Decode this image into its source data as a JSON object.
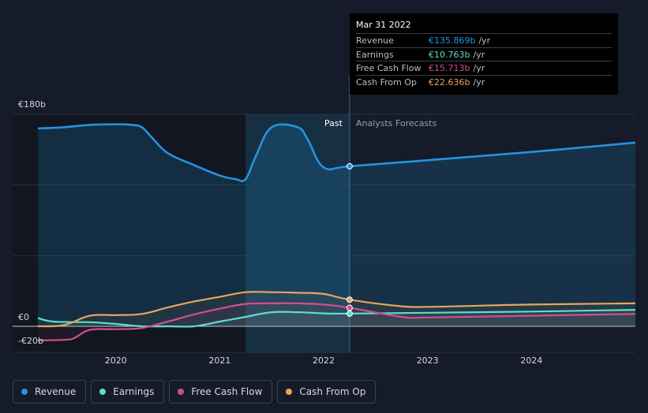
{
  "chart_data": {
    "type": "line",
    "title": "",
    "xlabel": "",
    "ylabel": "",
    "currency": "€",
    "y_tick_labels": [
      "€180b",
      "€0",
      "-€20b"
    ],
    "y_ticks": [
      180,
      0,
      -20
    ],
    "ylim": [
      -20,
      180
    ],
    "x_tick_labels": [
      "2020",
      "2021",
      "2022",
      "2023",
      "2024"
    ],
    "x_ticks": [
      2020,
      2021,
      2022,
      2023,
      2024
    ],
    "xlim": [
      2019.25,
      2025.0
    ],
    "past_label": "Past",
    "forecast_label": "Analysts Forecasts",
    "shaded_region": [
      2021.25,
      2022.25
    ],
    "divider_x": 2022.25,
    "grid": true,
    "legend_position": "bottom-left",
    "series": [
      {
        "name": "Revenue",
        "color": "#2394df",
        "fill": true,
        "points": [
          [
            2019.25,
            168
          ],
          [
            2019.5,
            169
          ],
          [
            2019.75,
            171
          ],
          [
            2020.0,
            171.5
          ],
          [
            2020.15,
            171
          ],
          [
            2020.25,
            169
          ],
          [
            2020.35,
            160
          ],
          [
            2020.5,
            147
          ],
          [
            2020.75,
            137
          ],
          [
            2021.0,
            128
          ],
          [
            2021.15,
            125
          ],
          [
            2021.25,
            125
          ],
          [
            2021.35,
            145
          ],
          [
            2021.5,
            169
          ],
          [
            2021.75,
            169
          ],
          [
            2021.85,
            158
          ],
          [
            2022.0,
            135
          ],
          [
            2022.25,
            135.9
          ],
          [
            2023.0,
            141
          ],
          [
            2024.0,
            148
          ],
          [
            2025.0,
            156
          ]
        ]
      },
      {
        "name": "Earnings",
        "color": "#5ddfc7",
        "fill": false,
        "points": [
          [
            2019.25,
            7
          ],
          [
            2019.4,
            4
          ],
          [
            2019.75,
            3.5
          ],
          [
            2020.0,
            2
          ],
          [
            2020.25,
            0
          ],
          [
            2020.5,
            0
          ],
          [
            2020.75,
            0
          ],
          [
            2021.0,
            4
          ],
          [
            2021.25,
            8
          ],
          [
            2021.5,
            12
          ],
          [
            2021.75,
            12
          ],
          [
            2022.0,
            11
          ],
          [
            2022.25,
            10.8
          ],
          [
            2023.0,
            11.5
          ],
          [
            2024.0,
            12.5
          ],
          [
            2025.0,
            14
          ]
        ]
      },
      {
        "name": "Free Cash Flow",
        "color": "#d24e8f",
        "fill": false,
        "points": [
          [
            2019.25,
            -12
          ],
          [
            2019.5,
            -11.5
          ],
          [
            2019.6,
            -10
          ],
          [
            2019.75,
            -3
          ],
          [
            2020.0,
            -2.5
          ],
          [
            2020.25,
            -1.5
          ],
          [
            2020.5,
            4
          ],
          [
            2020.75,
            10
          ],
          [
            2021.0,
            15
          ],
          [
            2021.25,
            19
          ],
          [
            2021.5,
            19.5
          ],
          [
            2021.75,
            19.5
          ],
          [
            2022.0,
            18.5
          ],
          [
            2022.25,
            15.7
          ],
          [
            2022.75,
            8
          ],
          [
            2023.0,
            7.5
          ],
          [
            2024.0,
            9
          ],
          [
            2025.0,
            10.5
          ]
        ]
      },
      {
        "name": "Cash From Op",
        "color": "#e8a55c",
        "fill": false,
        "points": [
          [
            2019.25,
            0
          ],
          [
            2019.5,
            1
          ],
          [
            2019.75,
            9
          ],
          [
            2020.0,
            9.5
          ],
          [
            2020.25,
            10.5
          ],
          [
            2020.5,
            16
          ],
          [
            2020.75,
            21
          ],
          [
            2021.0,
            25
          ],
          [
            2021.25,
            29
          ],
          [
            2021.5,
            29
          ],
          [
            2021.75,
            28.5
          ],
          [
            2022.0,
            27.5
          ],
          [
            2022.25,
            22.6
          ],
          [
            2022.75,
            17
          ],
          [
            2023.0,
            16.5
          ],
          [
            2023.5,
            17.5
          ],
          [
            2024.0,
            18.5
          ],
          [
            2025.0,
            19.5
          ]
        ]
      }
    ]
  },
  "tooltip": {
    "date": "Mar 31 2022",
    "rows": [
      {
        "label": "Revenue",
        "value": "€135.869b",
        "unit": "/yr",
        "color": "#2394df"
      },
      {
        "label": "Earnings",
        "value": "€10.763b",
        "unit": "/yr",
        "color": "#5ddfc7"
      },
      {
        "label": "Free Cash Flow",
        "value": "€15.713b",
        "unit": "/yr",
        "color": "#d24e8f"
      },
      {
        "label": "Cash From Op",
        "value": "€22.636b",
        "unit": "/yr",
        "color": "#e8a55c"
      }
    ]
  },
  "legend": [
    {
      "label": "Revenue",
      "color": "#2394df"
    },
    {
      "label": "Earnings",
      "color": "#5ddfc7"
    },
    {
      "label": "Free Cash Flow",
      "color": "#d24e8f"
    },
    {
      "label": "Cash From Op",
      "color": "#e8a55c"
    }
  ]
}
